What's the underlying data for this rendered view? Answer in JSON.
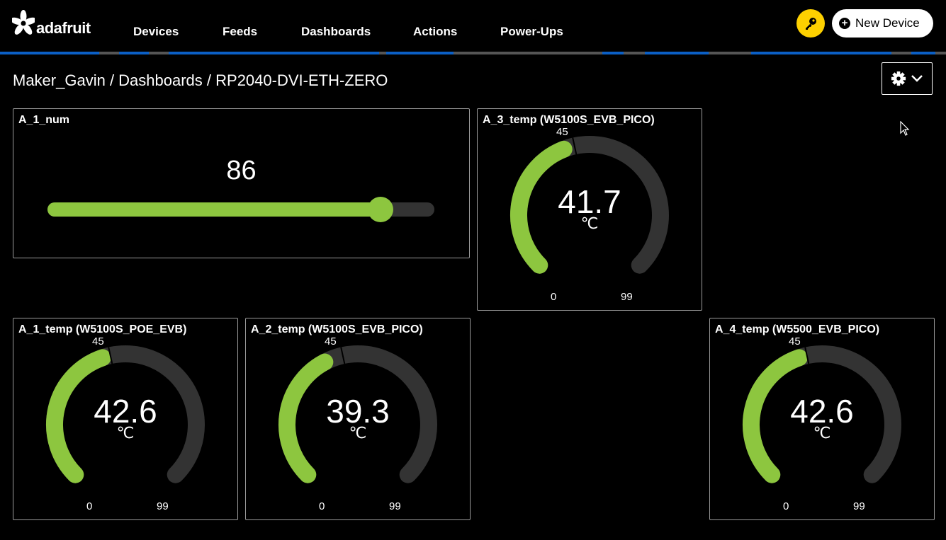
{
  "header": {
    "logo_text": "adafruit",
    "nav": [
      "Devices",
      "Feeds",
      "Dashboards",
      "Actions",
      "Power-Ups"
    ],
    "key_icon": "key-icon",
    "new_device_label": "New Device"
  },
  "breadcrumb": {
    "text": "Maker_Gavin / Dashboards / RP2040-DVI-ETH-ZERO",
    "gear_icon": "gear-icon",
    "chevron_icon": "chevron-down-icon"
  },
  "colors": {
    "accent": "#8dc63f",
    "track": "#333333",
    "key": "#fdd000",
    "stripe": "#0b5fc5"
  },
  "slider": {
    "title": "A_1_num",
    "value": "86",
    "min": 0,
    "max": 100,
    "fill_fraction": 0.86
  },
  "gauges": [
    {
      "title": "A_3_temp (W5100S_EVB_PICO)",
      "value": "41.7",
      "unit": "℃",
      "min": "0",
      "max": "99",
      "mid": "45"
    },
    {
      "title": "A_1_temp (W5100S_POE_EVB)",
      "value": "42.6",
      "unit": "℃",
      "min": "0",
      "max": "99",
      "mid": "45"
    },
    {
      "title": "A_2_temp (W5100S_EVB_PICO)",
      "value": "39.3",
      "unit": "℃",
      "min": "0",
      "max": "99",
      "mid": "45"
    },
    {
      "title": "A_4_temp (W5500_EVB_PICO)",
      "value": "42.6",
      "unit": "℃",
      "min": "0",
      "max": "99",
      "mid": "45"
    }
  ]
}
